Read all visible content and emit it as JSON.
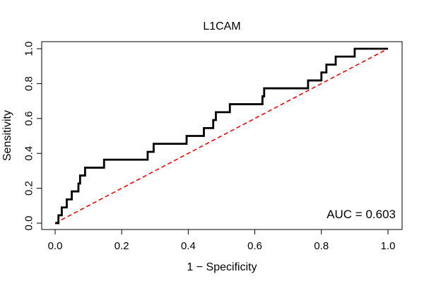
{
  "chart_data": {
    "type": "line",
    "title": "L1CAM",
    "xlabel": "1 − Specificity",
    "ylabel": "Sensitivity",
    "xlim": [
      0,
      1
    ],
    "ylim": [
      0,
      1
    ],
    "x_ticks": [
      "0.0",
      "0.2",
      "0.4",
      "0.6",
      "0.8",
      "1.0"
    ],
    "y_ticks": [
      "0.0",
      "0.2",
      "0.4",
      "0.6",
      "0.8",
      "1.0"
    ],
    "grid": false,
    "series": [
      {
        "style": "solid",
        "color": "#000000",
        "points": [
          [
            0.0,
            0.0
          ],
          [
            0.01,
            0.0
          ],
          [
            0.01,
            0.045
          ],
          [
            0.02,
            0.045
          ],
          [
            0.02,
            0.09
          ],
          [
            0.035,
            0.09
          ],
          [
            0.035,
            0.136
          ],
          [
            0.05,
            0.136
          ],
          [
            0.05,
            0.182
          ],
          [
            0.07,
            0.182
          ],
          [
            0.07,
            0.227
          ],
          [
            0.075,
            0.227
          ],
          [
            0.075,
            0.273
          ],
          [
            0.09,
            0.273
          ],
          [
            0.09,
            0.318
          ],
          [
            0.147,
            0.318
          ],
          [
            0.147,
            0.364
          ],
          [
            0.278,
            0.364
          ],
          [
            0.278,
            0.409
          ],
          [
            0.296,
            0.409
          ],
          [
            0.296,
            0.455
          ],
          [
            0.395,
            0.455
          ],
          [
            0.395,
            0.5
          ],
          [
            0.447,
            0.5
          ],
          [
            0.447,
            0.545
          ],
          [
            0.475,
            0.545
          ],
          [
            0.475,
            0.591
          ],
          [
            0.483,
            0.591
          ],
          [
            0.483,
            0.636
          ],
          [
            0.525,
            0.636
          ],
          [
            0.525,
            0.682
          ],
          [
            0.623,
            0.682
          ],
          [
            0.623,
            0.727
          ],
          [
            0.628,
            0.727
          ],
          [
            0.628,
            0.773
          ],
          [
            0.76,
            0.773
          ],
          [
            0.76,
            0.818
          ],
          [
            0.8,
            0.818
          ],
          [
            0.8,
            0.864
          ],
          [
            0.815,
            0.864
          ],
          [
            0.815,
            0.909
          ],
          [
            0.843,
            0.909
          ],
          [
            0.843,
            0.955
          ],
          [
            0.9,
            0.955
          ],
          [
            0.9,
            1.0
          ],
          [
            1.0,
            1.0
          ]
        ]
      },
      {
        "style": "dashed",
        "color": "#ff0000",
        "points": [
          [
            0,
            0
          ],
          [
            1,
            1
          ]
        ]
      }
    ],
    "annotation": "AUC = 0.603"
  }
}
